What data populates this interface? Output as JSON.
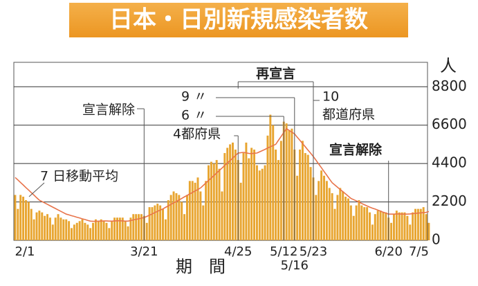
{
  "chart_data": {
    "type": "bar",
    "title": "日本・日別新規感染者数",
    "y_unit": "人",
    "xlabel": "期　間",
    "categories": [
      "2/1",
      null,
      null,
      null,
      null,
      null,
      null,
      null,
      null,
      null,
      null,
      null,
      null,
      null,
      null,
      null,
      null,
      null,
      null,
      null,
      null,
      null,
      null,
      null,
      null,
      null,
      null,
      null,
      null,
      null,
      null,
      null,
      null,
      null,
      null,
      null,
      null,
      null,
      null,
      null,
      null,
      null,
      null,
      null,
      null,
      null,
      null,
      null,
      "3/21",
      null,
      null,
      null,
      null,
      null,
      null,
      null,
      null,
      null,
      null,
      null,
      null,
      null,
      null,
      null,
      null,
      null,
      null,
      null,
      null,
      null,
      null,
      null,
      null,
      null,
      null,
      null,
      null,
      null,
      null,
      null,
      null,
      null,
      null,
      "4/25",
      null,
      null,
      null,
      null,
      null,
      null,
      null,
      null,
      null,
      null,
      null,
      null,
      null,
      null,
      null,
      null,
      "5/12",
      null,
      null,
      null,
      "5/16",
      null,
      null,
      null,
      null,
      null,
      null,
      "5/23",
      null,
      null,
      null,
      null,
      null,
      null,
      null,
      null,
      null,
      null,
      null,
      null,
      null,
      null,
      null,
      null,
      null,
      null,
      null,
      null,
      null,
      null,
      null,
      null,
      null,
      null,
      null,
      "6/20",
      null,
      null,
      null,
      null,
      null,
      null,
      null,
      null,
      null,
      null,
      null,
      null,
      null,
      null,
      "7/5"
    ],
    "series": [
      {
        "color": "#e8a530",
        "values": [
          2600,
          1800,
          2600,
          2500,
          2300,
          2200,
          1800,
          1200,
          1600,
          1700,
          1600,
          1400,
          1500,
          1300,
          900,
          1300,
          1500,
          1300,
          1200,
          1200,
          1100,
          700,
          900,
          1000,
          1100,
          1200,
          1000,
          900,
          700,
          1000,
          1200,
          1100,
          1200,
          1100,
          1000,
          700,
          1100,
          1300,
          1300,
          1300,
          1300,
          1100,
          800,
          1300,
          1500,
          1500,
          1500,
          1500,
          1400,
          1000,
          1900,
          1900,
          2000,
          2100,
          2000,
          1800,
          1200,
          2300,
          2600,
          2800,
          2700,
          2600,
          2200,
          1500,
          2600,
          3400,
          3400,
          3300,
          3600,
          2800,
          2000,
          3400,
          4300,
          4500,
          4400,
          4600,
          4100,
          2800,
          5000,
          5300,
          5500,
          5600,
          5200,
          4600,
          3300,
          5000,
          5600,
          4700,
          5300,
          5200,
          4300,
          4000,
          4100,
          4300,
          6000,
          7200,
          6600,
          5200,
          4600,
          5700,
          6800,
          6700,
          6300,
          6400,
          5200,
          3700,
          5200,
          5700,
          5000,
          4900,
          4200,
          3600,
          2600,
          3400,
          4000,
          3700,
          3400,
          3000,
          2700,
          1800,
          2600,
          3000,
          2800,
          2500,
          2400,
          2000,
          1400,
          2000,
          2300,
          2000,
          1900,
          1900,
          1600,
          900,
          1500,
          1700,
          1700,
          1600,
          1600,
          1300,
          1000,
          1500,
          1700,
          1600,
          1600,
          1600,
          1400,
          900,
          1600,
          1800,
          1800,
          1800,
          1900,
          1500,
          1000
        ]
      },
      {
        "name": "7 日移動平均",
        "type": "line",
        "color": "#e8734a",
        "values": [
          3600,
          3460,
          3310,
          3170,
          3020,
          2880,
          2730,
          2590,
          2440,
          2300,
          2220,
          2140,
          2060,
          1980,
          1900,
          1820,
          1740,
          1660,
          1580,
          1500,
          1460,
          1410,
          1370,
          1320,
          1280,
          1230,
          1190,
          1140,
          1100,
          1090,
          1090,
          1100,
          1100,
          1110,
          1110,
          1100,
          1100,
          1110,
          1120,
          1120,
          1110,
          1100,
          1100,
          1130,
          1170,
          1200,
          1230,
          1270,
          1300,
          1370,
          1440,
          1510,
          1590,
          1660,
          1730,
          1800,
          1890,
          1970,
          2060,
          2140,
          2230,
          2310,
          2400,
          2490,
          2570,
          2660,
          2740,
          2830,
          2910,
          3000,
          3140,
          3290,
          3430,
          3570,
          3710,
          3860,
          4000,
          4140,
          4290,
          4430,
          4570,
          4710,
          4860,
          5000,
          5020,
          5040,
          5010,
          4980,
          4970,
          4990,
          5000,
          5070,
          5140,
          5210,
          5290,
          5360,
          5430,
          5500,
          5730,
          5950,
          6180,
          6400,
          6300,
          6200,
          6100,
          5910,
          5730,
          5540,
          5360,
          5170,
          4990,
          4800,
          4590,
          4370,
          4160,
          3940,
          3730,
          3510,
          3300,
          3170,
          3040,
          2910,
          2790,
          2660,
          2530,
          2400,
          2330,
          2260,
          2190,
          2110,
          2040,
          1970,
          1900,
          1840,
          1790,
          1730,
          1670,
          1610,
          1560,
          1500,
          1500,
          1500,
          1510,
          1510,
          1500,
          1500,
          1500,
          1510,
          1530,
          1540,
          1560,
          1570,
          1590,
          1600,
          1650
        ]
      }
    ],
    "ylim": [
      0,
      10200
    ],
    "yticks": [
      0,
      2200,
      4400,
      6600,
      8800
    ],
    "grid": true,
    "annotations": [
      "宣言解除",
      "再宣言",
      "9 〃",
      "6 〃",
      "4都府県",
      "10",
      "都道府県",
      "宣言解除"
    ]
  }
}
